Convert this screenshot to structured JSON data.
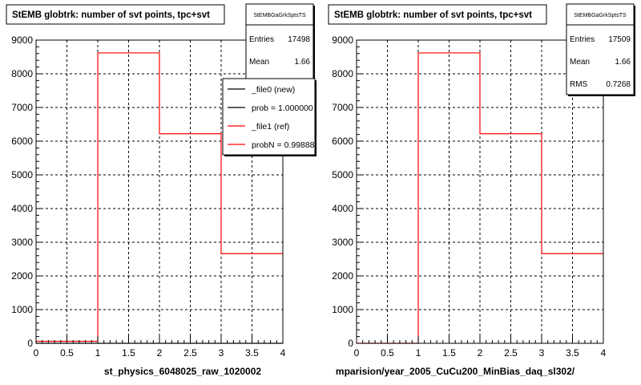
{
  "chart_data": [
    {
      "type": "histogram",
      "title": "StEMB globtrk: number of svt points, tpc+svt",
      "xlabel": "st_physics_6048025_raw_1020002",
      "ylabel": "",
      "xlim": [
        0,
        4
      ],
      "ylim": [
        0,
        9000
      ],
      "x_ticks": [
        "0",
        "0.5",
        "1",
        "1.5",
        "2",
        "2.5",
        "3",
        "3.5",
        "4"
      ],
      "y_ticks": [
        "0",
        "1000",
        "2000",
        "3000",
        "4000",
        "5000",
        "6000",
        "7000",
        "8000",
        "9000"
      ],
      "grid": true,
      "bins": [
        [
          0,
          1
        ],
        [
          1,
          2
        ],
        [
          2,
          3
        ],
        [
          3,
          4
        ]
      ],
      "series": [
        {
          "name": "_file0 (new)",
          "color": "#000000",
          "values": [
            0,
            0,
            0,
            0
          ]
        },
        {
          "name": "_file1 (ref)",
          "color": "#ff0000",
          "values": [
            60,
            8620,
            6220,
            2660
          ]
        }
      ],
      "stats": {
        "name": "StEMBGaGrkSptsTS",
        "rows": [
          {
            "label": "Entries",
            "value": "17498"
          },
          {
            "label": "Mean",
            "value": "1.66"
          }
        ]
      },
      "legend": {
        "placement": "top-right",
        "entries": [
          {
            "text": "_file0 (new)",
            "color": "#000000"
          },
          {
            "text": "prob = 1.000000",
            "color": "#000000"
          },
          {
            "text": "_file1 (ref)",
            "color": "#ff0000"
          },
          {
            "text": "probN = 0.99888",
            "color": "#ff0000"
          }
        ]
      }
    },
    {
      "type": "histogram",
      "title": "StEMB globtrk: number of svt points, tpc+svt",
      "xlabel": "mparision/year_2005_CuCu200_MinBias_daq_sl302/",
      "ylabel": "",
      "xlim": [
        0,
        4
      ],
      "ylim": [
        0,
        9000
      ],
      "x_ticks": [
        "0",
        "0.5",
        "1",
        "1.5",
        "2",
        "2.5",
        "3",
        "3.5",
        "4"
      ],
      "y_ticks": [
        "0",
        "1000",
        "2000",
        "3000",
        "4000",
        "5000",
        "6000",
        "7000",
        "8000",
        "9000"
      ],
      "grid": true,
      "bins": [
        [
          0,
          1
        ],
        [
          1,
          2
        ],
        [
          2,
          3
        ],
        [
          3,
          4
        ]
      ],
      "series": [
        {
          "name": "",
          "color": "#ff0000",
          "values": [
            0,
            8620,
            6220,
            2660
          ]
        }
      ],
      "stats": {
        "name": "StEMBGaGrkSptsTS",
        "rows": [
          {
            "label": "Entries",
            "value": "17509"
          },
          {
            "label": "Mean",
            "value": "1.66"
          },
          {
            "label": "RMS",
            "value": "0.7268"
          }
        ]
      },
      "legend": null
    }
  ]
}
